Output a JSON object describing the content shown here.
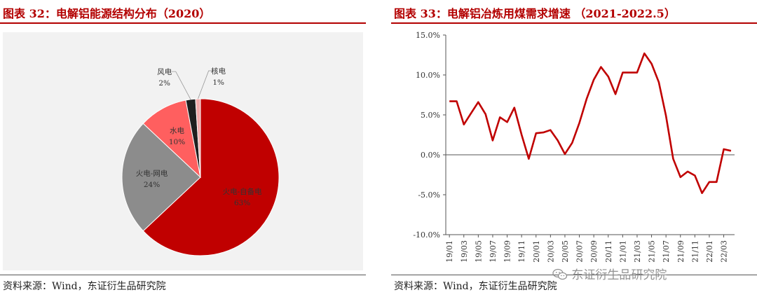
{
  "left": {
    "title": "图表 32：电解铝能源结构分布（2020）",
    "source": "资料来源：Wind，东证衍生品研究院"
  },
  "right": {
    "title": "图表 33：电解铝冶炼用煤需求增速  （2021-2022.5）",
    "source": "资料来源：Wind，东证衍生品研究院"
  },
  "watermark": {
    "text": "东证衍生品研究院",
    "icon": "wechat-icon"
  },
  "colors": {
    "title": "#b30000",
    "line": "#c00000",
    "hydro": "#ff5f5f",
    "thermal": "#8c8c8c",
    "wind": "#1f1f1f",
    "nuclear": "#f2aaaa",
    "self": "#c00000"
  },
  "chart_data": [
    {
      "type": "pie",
      "slices": [
        {
          "label": "火电-自备电",
          "value": 63,
          "pct": "63%"
        },
        {
          "label": "火电-网电",
          "value": 24,
          "pct": "24%"
        },
        {
          "label": "水电",
          "value": 10,
          "pct": "10%"
        },
        {
          "label": "风电",
          "value": 2,
          "pct": "2%"
        },
        {
          "label": "核电",
          "value": 1,
          "pct": "1%"
        }
      ]
    },
    {
      "type": "line",
      "x": [
        "19/01",
        "19/02",
        "19/03",
        "19/04",
        "19/05",
        "19/06",
        "19/07",
        "19/08",
        "19/09",
        "19/10",
        "19/11",
        "19/12",
        "20/01",
        "20/02",
        "20/03",
        "20/04",
        "20/05",
        "20/06",
        "20/07",
        "20/08",
        "20/09",
        "20/10",
        "20/11",
        "20/12",
        "21/01",
        "21/02",
        "21/03",
        "21/04",
        "21/05",
        "21/06",
        "21/07",
        "21/08",
        "21/09",
        "21/10",
        "21/11",
        "21/12",
        "22/01",
        "22/02",
        "22/03",
        "22/04"
      ],
      "x_tick_labels": [
        "19/01",
        "19/03",
        "19/05",
        "19/07",
        "19/09",
        "19/11",
        "20/01",
        "20/03",
        "20/05",
        "20/07",
        "20/09",
        "20/11",
        "21/01",
        "21/03",
        "21/05",
        "21/07",
        "21/09",
        "21/11",
        "22/01",
        "22/03"
      ],
      "series": [
        {
          "values": [
            6.7,
            6.7,
            3.8,
            5.2,
            6.6,
            5.1,
            1.8,
            4.7,
            4.1,
            5.9,
            2.5,
            -0.5,
            2.7,
            2.8,
            3.1,
            1.8,
            0.1,
            1.5,
            4.0,
            7.0,
            9.4,
            11.0,
            9.8,
            7.6,
            10.3,
            10.3,
            10.3,
            12.7,
            11.4,
            9.1,
            4.9,
            -0.5,
            -2.8,
            -2.1,
            -2.6,
            -4.8,
            -3.4,
            -3.4,
            0.7,
            0.5
          ]
        }
      ],
      "y_tick_labels": [
        "15.0%",
        "10.0%",
        "5.0%",
        "0.0%",
        "-5.0%",
        "-10.0%"
      ],
      "ylim": [
        -10,
        15
      ],
      "grid": false
    }
  ]
}
